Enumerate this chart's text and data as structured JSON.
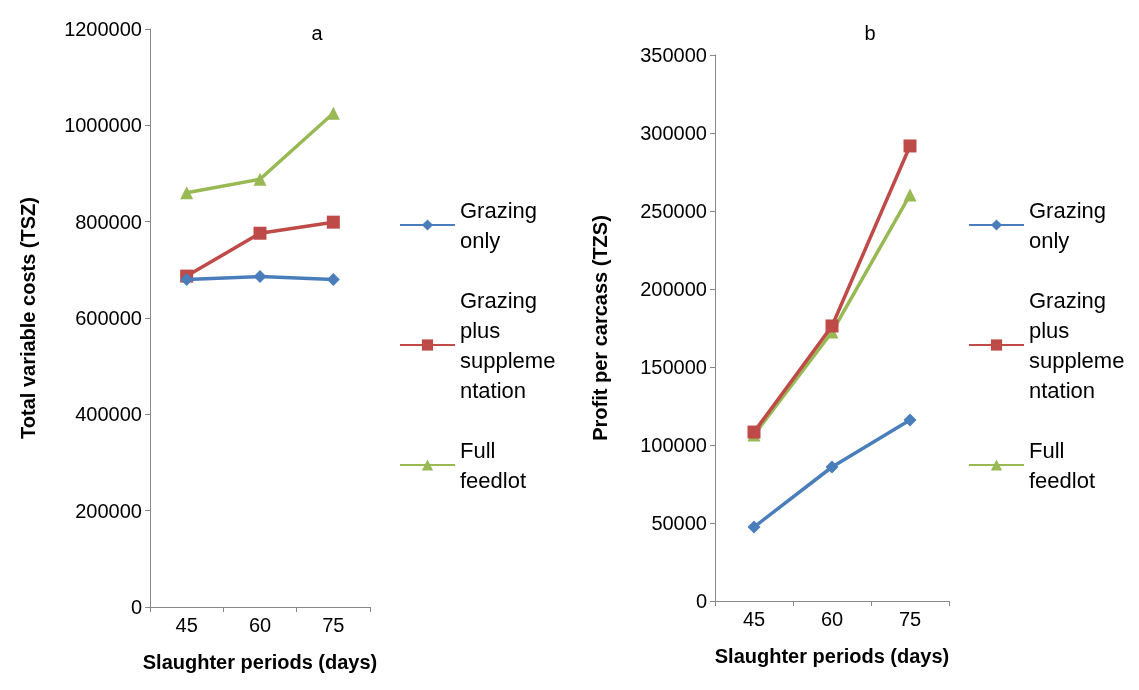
{
  "chart_data": [
    {
      "type": "line",
      "title": "a",
      "xlabel": "Slaughter periods (days)",
      "ylabel": "Total variable costs (TSZ)",
      "categories": [
        "45",
        "60",
        "75"
      ],
      "ylim": [
        0,
        1200000
      ],
      "yticks": [
        0,
        200000,
        400000,
        600000,
        800000,
        1000000,
        1200000
      ],
      "grid": false,
      "legend": "right",
      "series": [
        {
          "name": "Grazing only",
          "color": "#4a7ebb",
          "marker": "diamond",
          "values": [
            680000,
            686000,
            680000
          ]
        },
        {
          "name": "Grazing plus supplementation",
          "color": "#be4b48",
          "marker": "square",
          "values": [
            687000,
            776000,
            799000
          ]
        },
        {
          "name": "Full feedlot",
          "color": "#98b954",
          "marker": "triangle",
          "values": [
            860000,
            888000,
            1025000
          ]
        }
      ]
    },
    {
      "type": "line",
      "title": "b",
      "xlabel": "Slaughter periods (days)",
      "ylabel": "Profit per carcass (TZS)",
      "categories": [
        "45",
        "60",
        "75"
      ],
      "ylim": [
        0,
        350000
      ],
      "yticks": [
        0,
        50000,
        100000,
        150000,
        200000,
        250000,
        300000,
        350000
      ],
      "grid": false,
      "legend": "right",
      "series": [
        {
          "name": "Grazing only",
          "color": "#4a7ebb",
          "marker": "diamond",
          "values": [
            47400,
            85900,
            116000
          ]
        },
        {
          "name": "Grazing plus supplementation",
          "color": "#be4b48",
          "marker": "square",
          "values": [
            108300,
            176300,
            291700
          ]
        },
        {
          "name": "Full feedlot",
          "color": "#98b954",
          "marker": "triangle",
          "values": [
            106400,
            172400,
            260300
          ]
        }
      ]
    }
  ]
}
